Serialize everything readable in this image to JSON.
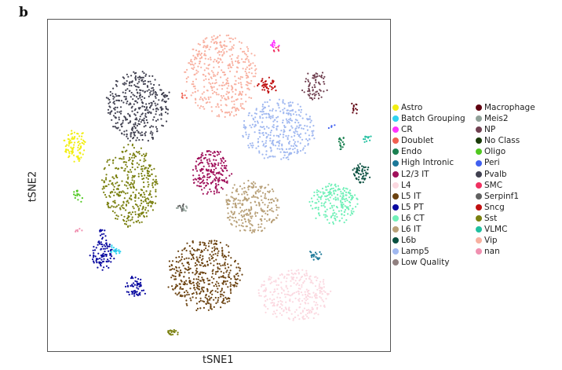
{
  "panel_label": "b",
  "chart_data": {
    "type": "scatter",
    "title": "",
    "xlabel": "tSNE1",
    "ylabel": "tSNE2",
    "xlim": [
      -50,
      50
    ],
    "ylim": [
      -50,
      50
    ],
    "grid": false,
    "legend_placement": "right",
    "legend": [
      {
        "label": "Astro",
        "color": "#f2ee10"
      },
      {
        "label": "Batch Grouping",
        "color": "#2fd3f0"
      },
      {
        "label": "CR",
        "color": "#ff33ff"
      },
      {
        "label": "Doublet",
        "color": "#f06050"
      },
      {
        "label": "Endo",
        "color": "#1a8050"
      },
      {
        "label": "High Intronic",
        "color": "#1b7898"
      },
      {
        "label": "L2/3 IT",
        "color": "#a0105a"
      },
      {
        "label": "L4",
        "color": "#fbd8e0"
      },
      {
        "label": "L5 IT",
        "color": "#6b4210"
      },
      {
        "label": "L5 PT",
        "color": "#0a0aa0"
      },
      {
        "label": "L6 CT",
        "color": "#70f0b8"
      },
      {
        "label": "L6 IT",
        "color": "#b8a078"
      },
      {
        "label": "L6b",
        "color": "#0a5040"
      },
      {
        "label": "Lamp5",
        "color": "#a0b8f0"
      },
      {
        "label": "Low Quality",
        "color": "#908080"
      },
      {
        "label": "Macrophage",
        "color": "#600010"
      },
      {
        "label": "Meis2",
        "color": "#90a098"
      },
      {
        "label": "NP",
        "color": "#704050"
      },
      {
        "label": "No Class",
        "color": "#1a3a0a"
      },
      {
        "label": "Oligo",
        "color": "#50c820"
      },
      {
        "label": "Peri",
        "color": "#4060f0"
      },
      {
        "label": "Pvalb",
        "color": "#404050"
      },
      {
        "label": "SMC",
        "color": "#f03060"
      },
      {
        "label": "Serpinf1",
        "color": "#606060"
      },
      {
        "label": "Sncg",
        "color": "#c01010"
      },
      {
        "label": "Sst",
        "color": "#7a8010"
      },
      {
        "label": "VLMC",
        "color": "#20c0a0"
      },
      {
        "label": "Vip",
        "color": "#f8b0a0"
      },
      {
        "label": "nan",
        "color": "#f090b0"
      }
    ],
    "clusters": [
      {
        "label": "Vip",
        "center": [
          0.8,
          33
        ],
        "spread": [
          10,
          12
        ],
        "n": 420
      },
      {
        "label": "Pvalb",
        "center": [
          -23.6,
          23.7
        ],
        "spread": [
          8.5,
          10
        ],
        "n": 380
      },
      {
        "label": "Lamp5",
        "center": [
          17.5,
          16.7
        ],
        "spread": [
          10,
          8.5
        ],
        "n": 340
      },
      {
        "label": "Sst",
        "center": [
          -26,
          0
        ],
        "spread": [
          7.5,
          12
        ],
        "n": 380
      },
      {
        "label": "L2/3 IT",
        "center": [
          -2.4,
          4
        ],
        "spread": [
          5,
          6.5
        ],
        "n": 200
      },
      {
        "label": "L6 IT",
        "center": [
          9.5,
          -6.3
        ],
        "spread": [
          7.5,
          7.5
        ],
        "n": 260
      },
      {
        "label": "L6 CT",
        "center": [
          33.6,
          -5.3
        ],
        "spread": [
          6.5,
          5.5
        ],
        "n": 200
      },
      {
        "label": "L5 IT",
        "center": [
          -4.2,
          -27
        ],
        "spread": [
          10,
          10
        ],
        "n": 450
      },
      {
        "label": "L4",
        "center": [
          22,
          -33
        ],
        "spread": [
          10,
          7.5
        ],
        "n": 300
      },
      {
        "label": "L5 PT",
        "center": [
          -34,
          -21
        ],
        "spread": [
          3,
          4.5
        ],
        "n": 90
      },
      {
        "label": "L5 PT",
        "center": [
          -24.6,
          -30.6
        ],
        "spread": [
          2.5,
          3
        ],
        "n": 60
      },
      {
        "label": "L5 PT",
        "center": [
          -34,
          -14.5
        ],
        "spread": [
          1.2,
          1.2
        ],
        "n": 12
      },
      {
        "label": "Astro",
        "center": [
          -42,
          12
        ],
        "spread": [
          3,
          4.5
        ],
        "n": 90
      },
      {
        "label": "Oligo",
        "center": [
          -41,
          -3.4
        ],
        "spread": [
          1,
          2
        ],
        "n": 15
      },
      {
        "label": "L6b",
        "center": [
          41.5,
          3.7
        ],
        "spread": [
          2.5,
          2.5
        ],
        "n": 60
      },
      {
        "label": "NP",
        "center": [
          28,
          29.7
        ],
        "spread": [
          3,
          4.5
        ],
        "n": 70
      },
      {
        "label": "Sncg",
        "center": [
          14,
          30
        ],
        "spread": [
          2.5,
          1.8
        ],
        "n": 40
      },
      {
        "label": "CR",
        "center": [
          15.9,
          42.7
        ],
        "spread": [
          0.8,
          1.2
        ],
        "n": 12
      },
      {
        "label": "Batch Grouping",
        "center": [
          -30.5,
          -19.5
        ],
        "spread": [
          1.2,
          1.5
        ],
        "n": 20
      },
      {
        "label": "High Intronic",
        "center": [
          28,
          -21
        ],
        "spread": [
          1.5,
          1
        ],
        "n": 20
      },
      {
        "label": "Endo",
        "center": [
          35.8,
          13
        ],
        "spread": [
          0.8,
          2
        ],
        "n": 18
      },
      {
        "label": "VLMC",
        "center": [
          43.4,
          14.3
        ],
        "spread": [
          0.7,
          1.2
        ],
        "n": 12
      },
      {
        "label": "Macrophage",
        "center": [
          39.6,
          23
        ],
        "spread": [
          0.7,
          1.5
        ],
        "n": 12
      },
      {
        "label": "Meis2",
        "center": [
          -10.6,
          -7
        ],
        "spread": [
          1.2,
          1.2
        ],
        "n": 14
      },
      {
        "label": "Serpinf1",
        "center": [
          -10.8,
          -6.5
        ],
        "spread": [
          0.8,
          0.8
        ],
        "n": 8
      },
      {
        "label": "nan",
        "center": [
          -41.5,
          -13.8
        ],
        "spread": [
          0.6,
          0.5
        ],
        "n": 6
      },
      {
        "label": "Sst",
        "center": [
          -13.3,
          -44.3
        ],
        "spread": [
          1.5,
          0.7
        ],
        "n": 20
      },
      {
        "label": "Doublet",
        "center": [
          -10.2,
          27
        ],
        "spread": [
          0.8,
          0.8
        ],
        "n": 6
      },
      {
        "label": "Peri",
        "center": [
          33,
          18
        ],
        "spread": [
          0.5,
          0.5
        ],
        "n": 4
      },
      {
        "label": "SMC",
        "center": [
          16.5,
          41
        ],
        "spread": [
          0.6,
          0.6
        ],
        "n": 6
      }
    ]
  }
}
